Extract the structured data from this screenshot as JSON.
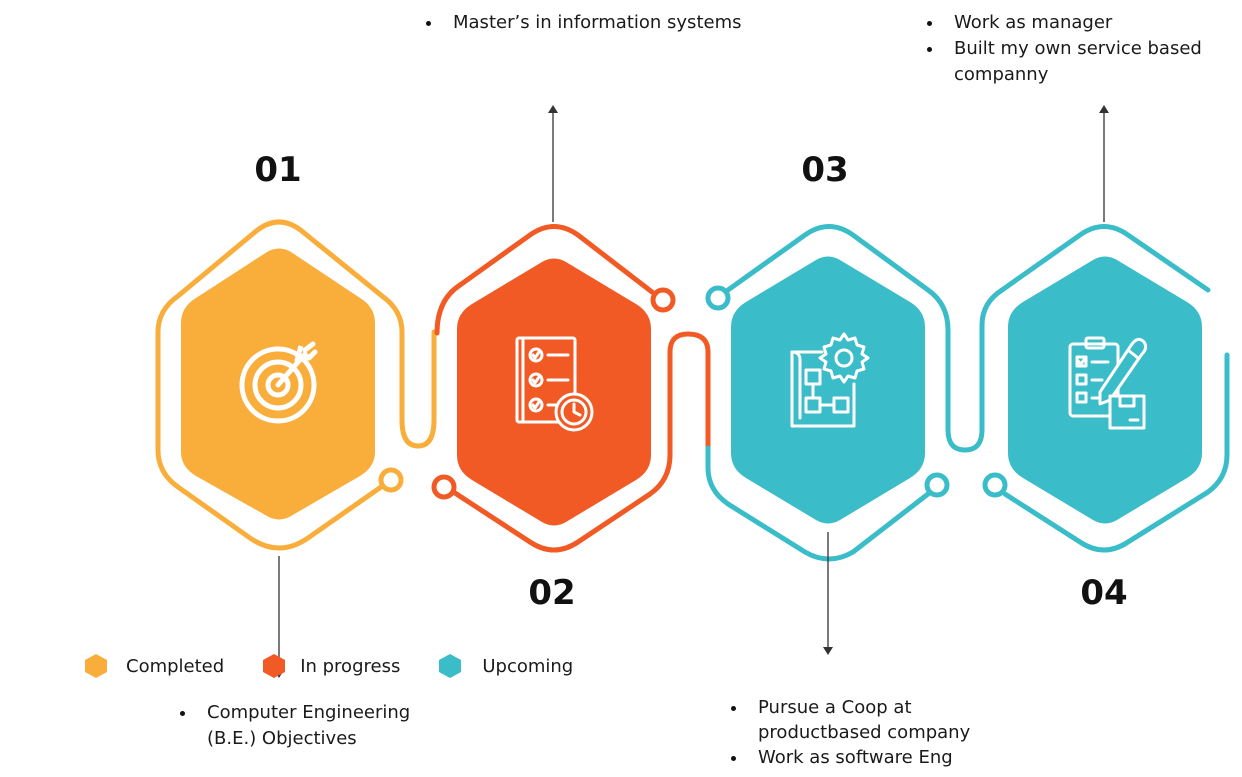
{
  "steps": [
    {
      "number": "01",
      "status": "completed",
      "icon": "target-icon",
      "bullets": [
        "Computer Engineering",
        "(B.E.) Objectives"
      ]
    },
    {
      "number": "02",
      "status": "in_progress",
      "icon": "checklist-clock-icon",
      "bullets": [
        "Master’s in information systems"
      ]
    },
    {
      "number": "03",
      "status": "upcoming",
      "icon": "blueprint-gear-icon",
      "bullets": [
        "Pursue a Coop at",
        "productbased company",
        "Work as software Eng"
      ]
    },
    {
      "number": "04",
      "status": "upcoming",
      "icon": "clipboard-pencil-box-icon",
      "bullets": [
        "Work as manager",
        "Built my own service based",
        "companny"
      ]
    }
  ],
  "legend": [
    {
      "label": "Completed",
      "color": "#F9AE3B"
    },
    {
      "label": "In progress",
      "color": "#F15A24"
    },
    {
      "label": "Upcoming",
      "color": "#3BBCC9"
    }
  ],
  "colors": {
    "completed": "#F9AE3B",
    "in_progress": "#F15A24",
    "upcoming": "#3BBCC9"
  }
}
